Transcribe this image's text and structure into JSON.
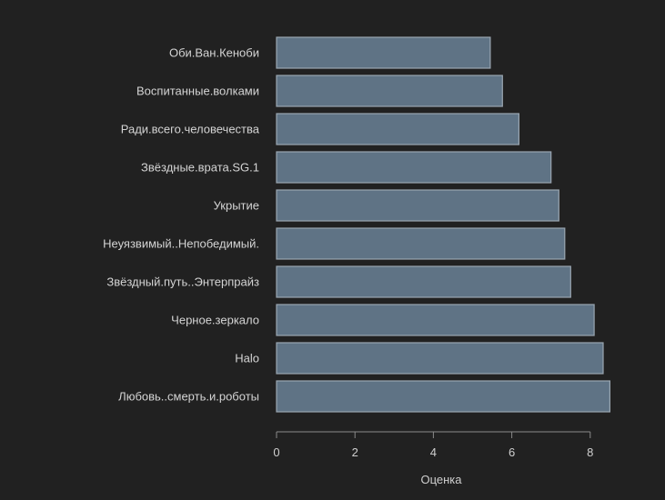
{
  "chart_data": {
    "type": "bar",
    "orientation": "horizontal",
    "categories": [
      "Оби.Ван.Кеноби",
      "Воспитанные.волками",
      "Ради.всего.человечества",
      "Звёздные.врата.SG.1",
      "Укрытие",
      "Неуязвимый..Непобедимый.",
      "Звёздный.путь..Энтерпрайз",
      "Черное.зеркало",
      "Halo",
      "Любовь..смерть.и.роботы"
    ],
    "values": [
      5.45,
      5.76,
      6.18,
      7.0,
      7.2,
      7.35,
      7.5,
      8.1,
      8.33,
      8.5
    ],
    "xlabel": "Оценка",
    "ylabel": "",
    "xlim": [
      0,
      8.6
    ],
    "xticks": [
      0,
      2,
      4,
      6,
      8
    ],
    "grid": false,
    "colors": {
      "background": "#212121",
      "bar_fill": "#5f7385",
      "bar_stroke": "#9aa6b1",
      "axis": "#8a8a8a",
      "text": "#cfcfcf"
    }
  }
}
